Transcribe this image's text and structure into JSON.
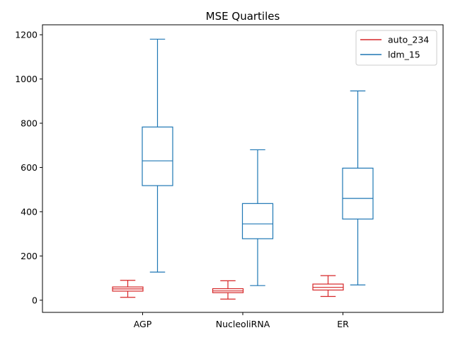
{
  "chart_data": {
    "type": "box",
    "title": "MSE Quartiles",
    "xlabel": "",
    "ylabel": "",
    "categories": [
      "AGP",
      "NucleoliRNA",
      "ER"
    ],
    "ylim": [
      -55,
      1245
    ],
    "yticks": [
      0,
      200,
      400,
      600,
      800,
      1000,
      1200
    ],
    "grid": false,
    "legend_position": "top-right",
    "series": [
      {
        "name": "auto_234",
        "color": "#d62728",
        "boxes": [
          {
            "whislo": 13,
            "q1": 41,
            "med": 51,
            "q3": 60,
            "whishi": 90
          },
          {
            "whislo": 5,
            "q1": 34,
            "med": 42,
            "q3": 52,
            "whishi": 88
          },
          {
            "whislo": 17,
            "q1": 46,
            "med": 58,
            "q3": 73,
            "whishi": 111
          }
        ]
      },
      {
        "name": "ldm_15",
        "color": "#1f77b4",
        "boxes": [
          {
            "whislo": 127,
            "q1": 518,
            "med": 630,
            "q3": 783,
            "whishi": 1180
          },
          {
            "whislo": 66,
            "q1": 278,
            "med": 345,
            "q3": 437,
            "whishi": 680
          },
          {
            "whislo": 69,
            "q1": 367,
            "med": 460,
            "q3": 597,
            "whishi": 946
          }
        ]
      }
    ]
  }
}
